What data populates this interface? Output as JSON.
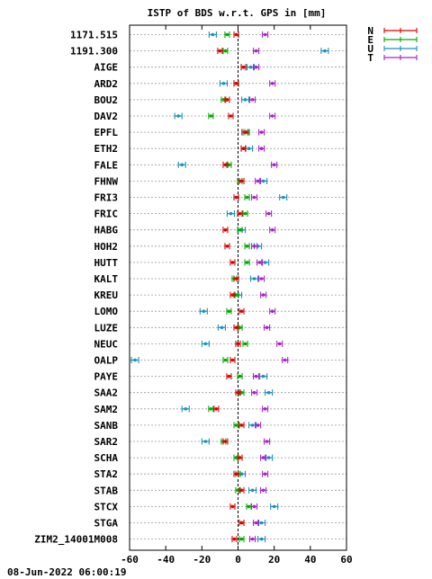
{
  "chart_data": {
    "type": "scatter",
    "title": "ISTP of BDS w.r.t. GPS in [mm]",
    "timestamp": "08-Jun-2022 06:00:19",
    "xlim": [
      -60,
      60
    ],
    "xticks": [
      "-60",
      "-40",
      "-20",
      "0",
      "20",
      "40",
      "60"
    ],
    "xtick_values": [
      -60,
      -40,
      -20,
      0,
      20,
      40,
      60
    ],
    "grid": true,
    "legend_position": "top-right",
    "series": [
      {
        "name": "N",
        "color": "#dd0000"
      },
      {
        "name": "E",
        "color": "#00aa00"
      },
      {
        "name": "U",
        "color": "#1f8fc0"
      },
      {
        "name": "T",
        "color": "#aa22cc"
      }
    ],
    "stations": [
      "1171.515",
      "1191.300",
      "AIGE",
      "ARD2",
      "BOU2",
      "DAV2",
      "EPFL",
      "ETH2",
      "FALE",
      "FHNW",
      "FRI3",
      "FRIC",
      "HABG",
      "HOH2",
      "HUTT",
      "KALT",
      "KREU",
      "LOMO",
      "LUZE",
      "NEUC",
      "OALP",
      "PAYE",
      "SAA2",
      "SAM2",
      "SANB",
      "SAR2",
      "SCHA",
      "STA2",
      "STAB",
      "STCX",
      "STGA",
      "ZIM2_14001M008"
    ],
    "values": [
      {
        "N": -1,
        "E": -6,
        "U": -14,
        "T": 15
      },
      {
        "N": -10,
        "E": -7,
        "U": 48,
        "T": 10
      },
      {
        "N": 3,
        "E": 3,
        "U": 7,
        "T": 10
      },
      {
        "N": -1,
        "E": -1,
        "U": -8,
        "T": 19
      },
      {
        "N": -6,
        "E": -8,
        "U": 4,
        "T": 8
      },
      {
        "N": -4,
        "E": -15,
        "U": -33,
        "T": 19
      },
      {
        "N": 4,
        "E": 5,
        "U": 4,
        "T": 13
      },
      {
        "N": 3,
        "E": 3,
        "U": 6,
        "T": 13
      },
      {
        "N": -7,
        "E": -5,
        "U": -31,
        "T": 20
      },
      {
        "N": 2,
        "E": 1,
        "U": 14,
        "T": 11
      },
      {
        "N": -1,
        "E": 5,
        "U": 25,
        "T": 9
      },
      {
        "N": 1,
        "E": 4,
        "U": -4,
        "T": 17
      },
      {
        "N": -7,
        "E": 1,
        "U": 2,
        "T": 19
      },
      {
        "N": -6,
        "E": 5,
        "U": 11,
        "T": 9
      },
      {
        "N": -3,
        "E": 5,
        "U": 15,
        "T": 12
      },
      {
        "N": -1,
        "E": -2,
        "U": 9,
        "T": 13
      },
      {
        "N": -3,
        "E": -1,
        "U": 0,
        "T": 14
      },
      {
        "N": 2,
        "E": -5,
        "U": -19,
        "T": 19
      },
      {
        "N": -1,
        "E": 1,
        "U": -9,
        "T": 16
      },
      {
        "N": 0,
        "E": 4,
        "U": -18,
        "T": 23
      },
      {
        "N": -3,
        "E": -7,
        "U": -57,
        "T": 26
      },
      {
        "N": -5,
        "E": 1,
        "U": 14,
        "T": 10
      },
      {
        "N": 0,
        "E": 2,
        "U": 17,
        "T": 9
      },
      {
        "N": -12,
        "E": -15,
        "U": -29,
        "T": 15
      },
      {
        "N": 2,
        "E": -1,
        "U": 8,
        "T": 11
      },
      {
        "N": -7,
        "E": -8,
        "U": -18,
        "T": 16
      },
      {
        "N": 1,
        "E": -1,
        "U": 17,
        "T": 14
      },
      {
        "N": -1,
        "E": 0,
        "U": 2,
        "T": 15
      },
      {
        "N": 2,
        "E": 0,
        "U": 8,
        "T": 14
      },
      {
        "N": -3,
        "E": 6,
        "U": 20,
        "T": 9
      },
      {
        "N": 2,
        "E": 2,
        "U": 13,
        "T": 10
      },
      {
        "N": -2,
        "E": 2,
        "U": 13,
        "T": 8
      }
    ]
  }
}
